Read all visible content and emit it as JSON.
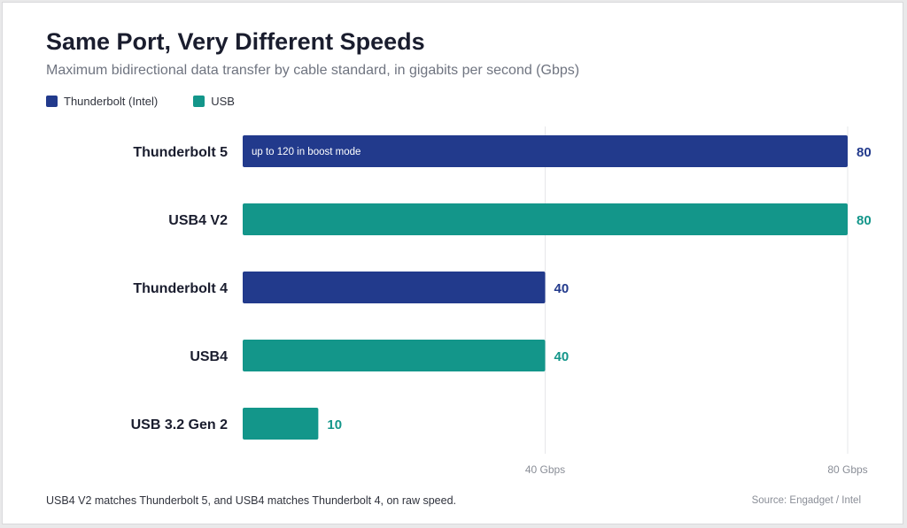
{
  "title": "Same Port, Very Different Speeds",
  "subtitle": "Maximum bidirectional data transfer by cable standard, in gigabits per second (Gbps)",
  "footnote": "USB4 V2 matches Thunderbolt 5, and USB4 matches Thunderbolt 4, on raw speed.",
  "source": "Source: Engadget / Intel",
  "legend": [
    {
      "label": "Thunderbolt (Intel)",
      "color": "#223a8c"
    },
    {
      "label": "USB",
      "color": "#13968a"
    }
  ],
  "chart_data": {
    "type": "bar",
    "orientation": "horizontal",
    "categories": [
      "Thunderbolt 5",
      "USB4 V2",
      "Thunderbolt 4",
      "USB4",
      "USB 3.2 Gen 2"
    ],
    "values": [
      80,
      80,
      40,
      40,
      10
    ],
    "value_labels": [
      "80",
      "80",
      "40",
      "40",
      "10"
    ],
    "series_of_bar": [
      "Thunderbolt (Intel)",
      "USB",
      "Thunderbolt (Intel)",
      "USB",
      "USB"
    ],
    "bar_annotations": [
      "up to 120 in boost mode",
      "",
      "",
      "",
      ""
    ],
    "xlim": [
      0,
      80
    ],
    "x_ticks": [
      40,
      80
    ],
    "x_tick_labels": [
      "40 Gbps",
      "80 Gbps"
    ],
    "grid": true,
    "legend_position": "top-left",
    "colors": {
      "Thunderbolt (Intel)": "#223a8c",
      "USB": "#13968a"
    }
  }
}
